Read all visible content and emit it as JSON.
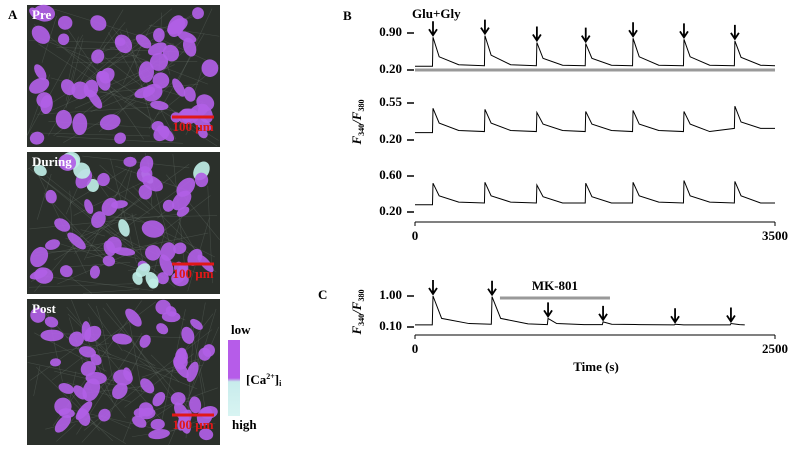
{
  "panel_a": {
    "label": "A",
    "images": [
      "Pre",
      "During",
      "Post"
    ],
    "scale_bars": [
      "100 µm",
      "100 µm",
      "100 µm"
    ],
    "colorbar": {
      "low": "low",
      "high": "high",
      "ion": [
        "[Ca",
        "2+",
        "]",
        "i"
      ]
    }
  },
  "chart_data": [
    {
      "type": "line",
      "panel": "B",
      "annotation": "Glu+Gly",
      "stimuli": [
        175,
        680,
        1185,
        1660,
        2120,
        2615,
        3110
      ],
      "xlim": [
        0,
        3500
      ],
      "ylim": [
        0.2,
        0.9
      ],
      "yticks": [
        {
          "value": 0.2,
          "label": "0.20"
        },
        {
          "value": 0.9,
          "label": "0.90"
        }
      ],
      "x": [
        0,
        170,
        175,
        235,
        425,
        675,
        680,
        740,
        930,
        1180,
        1185,
        1245,
        1435,
        1655,
        1660,
        1720,
        1910,
        2115,
        2120,
        2180,
        2370,
        2610,
        2615,
        2675,
        2865,
        3105,
        3110,
        3170,
        3360,
        3500
      ],
      "values": [
        0.27,
        0.27,
        0.82,
        0.45,
        0.3,
        0.28,
        0.85,
        0.48,
        0.3,
        0.28,
        0.72,
        0.42,
        0.29,
        0.28,
        0.7,
        0.42,
        0.29,
        0.28,
        0.8,
        0.45,
        0.29,
        0.28,
        0.78,
        0.45,
        0.29,
        0.28,
        0.75,
        0.44,
        0.29,
        0.28
      ]
    },
    {
      "type": "line",
      "ylabel": [
        "F",
        "340",
        "/F",
        "380"
      ],
      "xlim": [
        0,
        3500
      ],
      "ylim": [
        0.2,
        0.55
      ],
      "yticks": [
        {
          "value": 0.2,
          "label": "0.20"
        },
        {
          "value": 0.55,
          "label": "0.55"
        }
      ],
      "x": [
        0,
        170,
        175,
        235,
        425,
        675,
        680,
        740,
        930,
        1180,
        1185,
        1245,
        1435,
        1655,
        1660,
        1720,
        1910,
        2115,
        2120,
        2180,
        2370,
        2610,
        2615,
        2675,
        2865,
        3105,
        3110,
        3170,
        3360,
        3500
      ],
      "values": [
        0.27,
        0.27,
        0.5,
        0.36,
        0.29,
        0.28,
        0.49,
        0.36,
        0.29,
        0.28,
        0.46,
        0.35,
        0.29,
        0.28,
        0.47,
        0.35,
        0.29,
        0.28,
        0.48,
        0.35,
        0.29,
        0.28,
        0.47,
        0.35,
        0.28,
        0.31,
        0.52,
        0.37,
        0.31,
        0.31
      ]
    },
    {
      "type": "line",
      "xlim": [
        0,
        3500
      ],
      "xticks": [
        0,
        3500
      ],
      "ylim": [
        0.2,
        0.6
      ],
      "yticks": [
        {
          "value": 0.2,
          "label": "0.20"
        },
        {
          "value": 0.6,
          "label": "0.60"
        }
      ],
      "x": [
        0,
        170,
        175,
        235,
        425,
        675,
        680,
        740,
        930,
        1180,
        1185,
        1245,
        1435,
        1655,
        1660,
        1720,
        1910,
        2115,
        2120,
        2180,
        2370,
        2610,
        2615,
        2675,
        2865,
        3105,
        3110,
        3170,
        3360,
        3500
      ],
      "values": [
        0.28,
        0.28,
        0.52,
        0.38,
        0.31,
        0.3,
        0.53,
        0.38,
        0.31,
        0.3,
        0.5,
        0.37,
        0.3,
        0.3,
        0.52,
        0.37,
        0.3,
        0.3,
        0.53,
        0.38,
        0.31,
        0.3,
        0.55,
        0.38,
        0.31,
        0.3,
        0.54,
        0.38,
        0.3,
        0.3
      ]
    },
    {
      "type": "line",
      "panel": "C",
      "ylabel": [
        "F",
        "340",
        "/F",
        "380"
      ],
      "xlabel": "Time (s)",
      "annotation": {
        "text": "MK-801",
        "x": [
          590,
          1354
        ]
      },
      "stimuli": [
        125,
        535,
        924,
        1306,
        1806,
        2194
      ],
      "xlim": [
        0,
        2500
      ],
      "xticks": [
        0,
        2500
      ],
      "ylim": [
        0.1,
        1.0
      ],
      "yticks": [
        {
          "value": 0.1,
          "label": "0.10"
        },
        {
          "value": 1.0,
          "label": "1.00"
        }
      ],
      "x": [
        0,
        120,
        125,
        185,
        375,
        530,
        535,
        595,
        785,
        919,
        924,
        984,
        1174,
        1301,
        1306,
        1366,
        1556,
        1801,
        1806,
        1866,
        2056,
        2189,
        2194,
        2254,
        2290
      ],
      "values": [
        0.16,
        0.16,
        1.0,
        0.35,
        0.2,
        0.18,
        0.98,
        0.35,
        0.19,
        0.17,
        0.35,
        0.2,
        0.17,
        0.17,
        0.25,
        0.18,
        0.17,
        0.16,
        0.18,
        0.16,
        0.16,
        0.16,
        0.2,
        0.17,
        0.16
      ]
    }
  ]
}
